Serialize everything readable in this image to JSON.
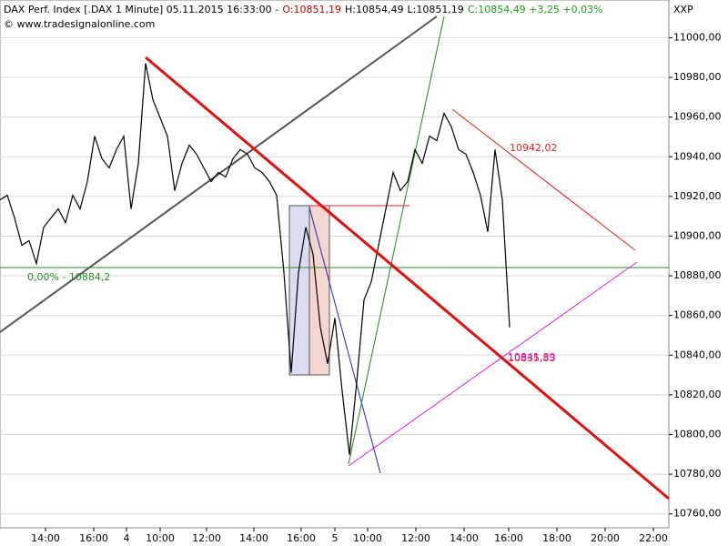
{
  "header": {
    "title": "DAX Perf. Index [.DAX  1 Minute] 05.11.2015 16:33:00 -",
    "open": "O:10851,19",
    "high": "H:10854,49",
    "low": "L:10851,19",
    "close": "C:10854,49 +3,25 +0,03%",
    "source": "© www.tradesignalonline.com",
    "code": "XXP"
  },
  "chart_data": {
    "type": "line",
    "x_labels": [
      "14:00",
      "16:00",
      "4",
      "10:00",
      "12:00",
      "14:00",
      "16:00",
      "5",
      "10:00",
      "12:00",
      "14:00",
      "16:00",
      "18:00",
      "20:00",
      "22:00"
    ],
    "series": [
      {
        "name": "DAX Perf. Index",
        "color": "#000000",
        "values": [
          10918.3,
          10920.6,
          10909.1,
          10895.4,
          10897.7,
          10886.2,
          10904.5,
          10909.1,
          10913.7,
          10906.8,
          10920.6,
          10913.7,
          10927.5,
          10950.4,
          10939.0,
          10934.4,
          10943.6,
          10950.4,
          10913.7,
          10936.7,
          10987.1,
          10968.8,
          10959.6,
          10950.4,
          10922.9,
          10936.7,
          10945.8,
          10941.3,
          10934.4,
          10927.5,
          10932.1,
          10929.8,
          10939.0,
          10943.6,
          10941.3,
          10934.4,
          10932.1,
          10927.5,
          10920.6,
          10881.6,
          10831.1,
          10881.6,
          10904.5,
          10890.8,
          10854.1,
          10835.7,
          10858.7,
          10821.9,
          10789.8,
          10826.5,
          10867.8,
          10877.0,
          10895.4,
          10913.7,
          10932.1,
          10922.9,
          10927.5,
          10943.6,
          10936.7,
          10950.4,
          10948.1,
          10961.9,
          10955.0,
          10943.6,
          10941.3,
          10932.1,
          10920.6,
          10902.2,
          10943.6,
          10918.3,
          10854.1
        ]
      }
    ],
    "ylim": [
      10753,
      11019
    ],
    "yticks": [
      {
        "value": 10760,
        "label": "10760,00"
      },
      {
        "value": 10780,
        "label": "10780,00"
      },
      {
        "value": 10800,
        "label": "10800,00"
      },
      {
        "value": 10820,
        "label": "10820,00"
      },
      {
        "value": 10840,
        "label": "10840,00"
      },
      {
        "value": 10860,
        "label": "10860,00"
      },
      {
        "value": 10880,
        "label": "10880,00"
      },
      {
        "value": 10900,
        "label": "10900,00"
      },
      {
        "value": 10920,
        "label": "10920,00"
      },
      {
        "value": 10940,
        "label": "10940,00"
      },
      {
        "value": 10960,
        "label": "10960,00"
      },
      {
        "value": 10980,
        "label": "10980,00"
      },
      {
        "value": 11000,
        "label": "11000,00"
      }
    ],
    "grid": true,
    "annotations": [
      "0,00% - 10884,2",
      "10942,02",
      "10835,83",
      "10841,39"
    ]
  }
}
